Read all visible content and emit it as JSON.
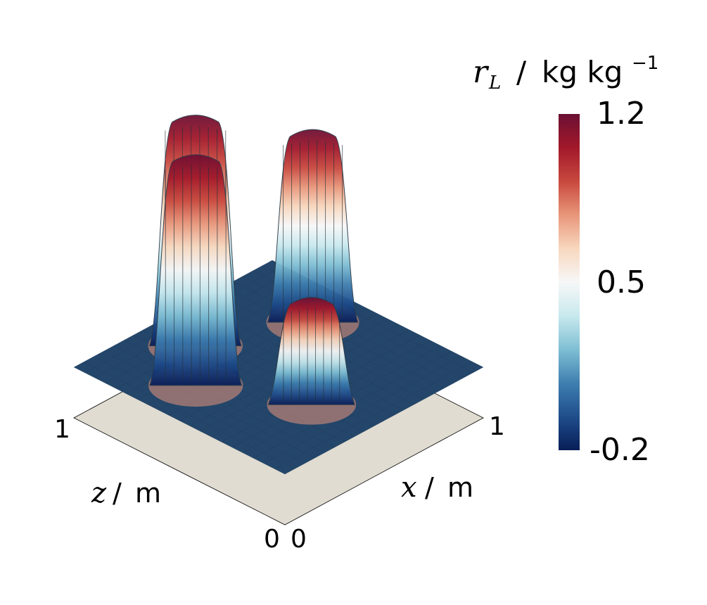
{
  "chart_data": {
    "type": "surface",
    "colorbar": {
      "title_var": "r",
      "title_sub": "L",
      "title_unit": "kg kg",
      "title_exp": "−1",
      "max_label": "1.2",
      "mid_label": "0.5",
      "min_label": "-0.2",
      "range": [
        -0.2,
        1.2
      ],
      "colors": [
        "#081d58",
        "#1f4e8c",
        "#3f7fb0",
        "#7fbfd4",
        "#c8e9ee",
        "#f7f7f7",
        "#f7d7be",
        "#e8967a",
        "#c8483e",
        "#a2182a",
        "#6b1034"
      ]
    },
    "x_axis": {
      "var": "x",
      "unit": "m",
      "tick_min": "0",
      "tick_max": "1",
      "range": [
        0,
        1
      ]
    },
    "z_axis": {
      "var": "z",
      "unit": "m",
      "tick_min": "0",
      "tick_max": "1",
      "range": [
        0,
        1
      ]
    },
    "base_color": "#24466a",
    "floor_color": "#e0dcd1",
    "bumps": [
      {
        "x": 0.21,
        "z": 0.62,
        "peak": 1.2
      },
      {
        "x": 0.4,
        "z": 0.8,
        "peak": 1.2
      },
      {
        "x": 0.8,
        "z": 0.62,
        "peak": 1.0
      },
      {
        "x": 0.4,
        "z": 0.25,
        "peak": 0.55
      }
    ]
  }
}
